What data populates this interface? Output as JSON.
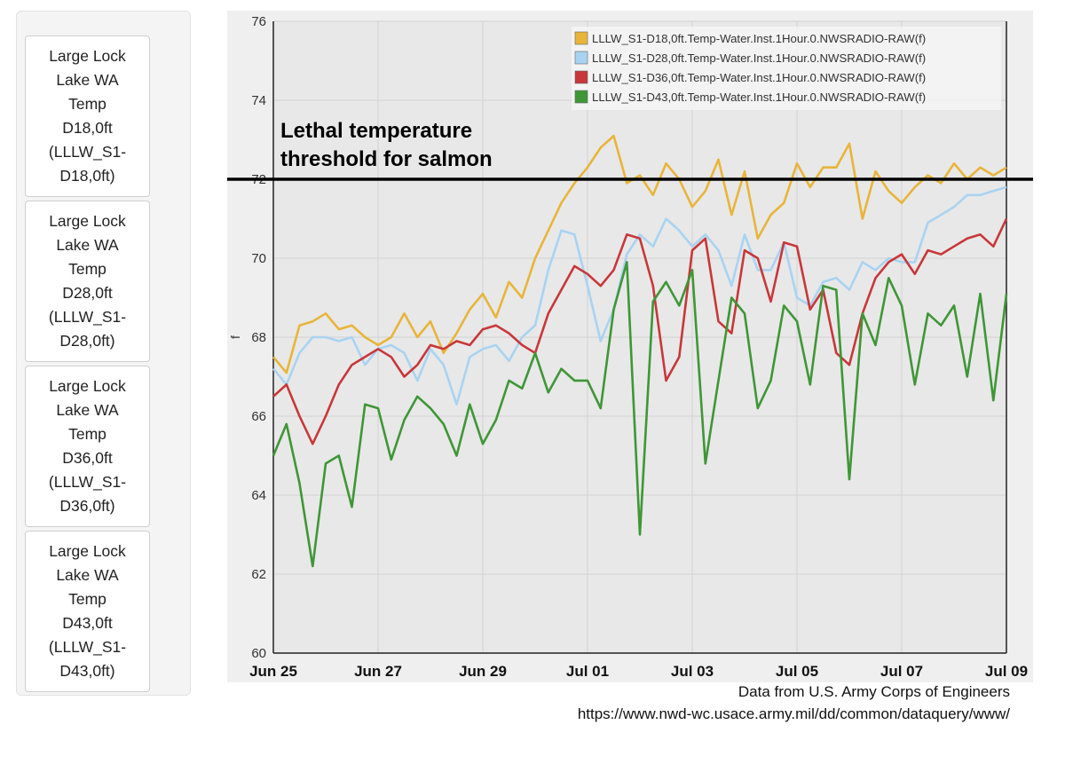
{
  "sidebar": {
    "items": [
      {
        "label": "Large Lock\nLake WA\nTemp\nD18,0ft\n(LLLW_S1-\nD18,0ft)"
      },
      {
        "label": "Large Lock\nLake WA\nTemp\nD28,0ft\n(LLLW_S1-\nD28,0ft)"
      },
      {
        "label": "Large Lock\nLake WA\nTemp\nD36,0ft\n(LLLW_S1-\nD36,0ft)"
      },
      {
        "label": "Large Lock\nLake WA\nTemp\nD43,0ft\n(LLLW_S1-\nD43,0ft)"
      }
    ]
  },
  "attribution": {
    "line1": "Data from U.S. Army Corps of Engineers",
    "line2": "https://www.nwd-wc.usace.army.mil/dd/common/dataquery/www/"
  },
  "chart_data": {
    "type": "line",
    "title": "",
    "xlabel": "",
    "ylabel": "f",
    "ylim": [
      60,
      76
    ],
    "yticks": [
      60,
      62,
      64,
      66,
      68,
      70,
      72,
      74,
      76
    ],
    "xlim": [
      "2019-06-25",
      "2019-07-09"
    ],
    "xticks": [
      "Jun 25",
      "Jun 27",
      "Jun 29",
      "Jul 01",
      "Jul 03",
      "Jul 05",
      "Jul 07",
      "Jul 09"
    ],
    "grid": true,
    "legend_position": "top-right",
    "threshold": {
      "value": 72,
      "label_line1": "Lethal temperature",
      "label_line2": "threshold for salmon",
      "color": "#000000"
    },
    "x_days": [
      0,
      0.25,
      0.5,
      0.75,
      1,
      1.25,
      1.5,
      1.75,
      2,
      2.25,
      2.5,
      2.75,
      3,
      3.25,
      3.5,
      3.75,
      4,
      4.25,
      4.5,
      4.75,
      5,
      5.25,
      5.5,
      5.75,
      6,
      6.25,
      6.5,
      6.75,
      7,
      7.25,
      7.5,
      7.75,
      8,
      8.25,
      8.5,
      8.75,
      9,
      9.25,
      9.5,
      9.75,
      10,
      10.25,
      10.5,
      10.75,
      11,
      11.25,
      11.5,
      11.75,
      12,
      12.25,
      12.5,
      12.75,
      13,
      13.25,
      13.5,
      13.75,
      14
    ],
    "series": [
      {
        "name": "LLLW_S1-D18,0ft.Temp-Water.Inst.1Hour.0.NWSRADIO-RAW(f)",
        "color": "#e8b53a",
        "values": [
          67.5,
          67.1,
          68.3,
          68.4,
          68.6,
          68.2,
          68.3,
          68.0,
          67.8,
          68.0,
          68.6,
          68.0,
          68.4,
          67.6,
          68.1,
          68.7,
          69.1,
          68.5,
          69.4,
          69.0,
          70.0,
          70.7,
          71.4,
          71.9,
          72.3,
          72.8,
          73.1,
          71.9,
          72.1,
          71.6,
          72.4,
          72.0,
          71.3,
          71.7,
          72.5,
          71.1,
          72.2,
          70.5,
          71.1,
          71.4,
          72.4,
          71.8,
          72.3,
          72.3,
          72.9,
          71.0,
          72.2,
          71.7,
          71.4,
          71.8,
          72.1,
          71.9,
          72.4,
          72.0,
          72.3,
          72.1,
          72.3
        ]
      },
      {
        "name": "LLLW_S1-D28,0ft.Temp-Water.Inst.1Hour.0.NWSRADIO-RAW(f)",
        "color": "#a9d3f2",
        "values": [
          67.2,
          66.8,
          67.6,
          68.0,
          68.0,
          67.9,
          68.0,
          67.3,
          67.7,
          67.8,
          67.6,
          66.9,
          67.7,
          67.3,
          66.3,
          67.5,
          67.7,
          67.8,
          67.4,
          68.0,
          68.3,
          69.7,
          70.7,
          70.6,
          69.3,
          67.9,
          68.7,
          70.1,
          70.6,
          70.3,
          71.0,
          70.7,
          70.3,
          70.6,
          70.2,
          69.3,
          70.6,
          69.7,
          69.7,
          70.4,
          69.0,
          68.8,
          69.4,
          69.5,
          69.2,
          69.9,
          69.7,
          70.0,
          69.9,
          69.9,
          70.9,
          71.1,
          71.3,
          71.6,
          71.6,
          71.7,
          71.8
        ]
      },
      {
        "name": "LLLW_S1-D36,0ft.Temp-Water.Inst.1Hour.0.NWSRADIO-RAW(f)",
        "color": "#c8373a",
        "values": [
          66.5,
          66.8,
          66.0,
          65.3,
          66.0,
          66.8,
          67.3,
          67.5,
          67.7,
          67.5,
          67.0,
          67.3,
          67.8,
          67.7,
          67.9,
          67.8,
          68.2,
          68.3,
          68.1,
          67.8,
          67.6,
          68.6,
          69.2,
          69.8,
          69.6,
          69.3,
          69.7,
          70.6,
          70.5,
          69.3,
          66.9,
          67.5,
          70.2,
          70.5,
          68.4,
          68.1,
          70.2,
          70.0,
          68.9,
          70.4,
          70.3,
          68.7,
          69.2,
          67.6,
          67.3,
          68.6,
          69.5,
          69.9,
          70.1,
          69.6,
          70.2,
          70.1,
          70.3,
          70.5,
          70.6,
          70.3,
          71.0
        ]
      },
      {
        "name": "LLLW_S1-D43,0ft.Temp-Water.Inst.1Hour.0.NWSRADIO-RAW(f)",
        "color": "#3f9636",
        "values": [
          65.0,
          65.8,
          64.3,
          62.2,
          64.8,
          65.0,
          63.7,
          66.3,
          66.2,
          64.9,
          65.9,
          66.5,
          66.2,
          65.8,
          65.0,
          66.3,
          65.3,
          65.9,
          66.9,
          66.7,
          67.6,
          66.6,
          67.2,
          66.9,
          66.9,
          66.2,
          68.7,
          69.9,
          63.0,
          68.9,
          69.4,
          68.8,
          69.7,
          64.8,
          66.9,
          69.0,
          68.6,
          66.2,
          66.9,
          68.8,
          68.4,
          66.8,
          69.3,
          69.2,
          64.4,
          68.6,
          67.8,
          69.5,
          68.8,
          66.8,
          68.6,
          68.3,
          68.8,
          67.0,
          69.1,
          66.4,
          69.1
        ]
      }
    ]
  }
}
